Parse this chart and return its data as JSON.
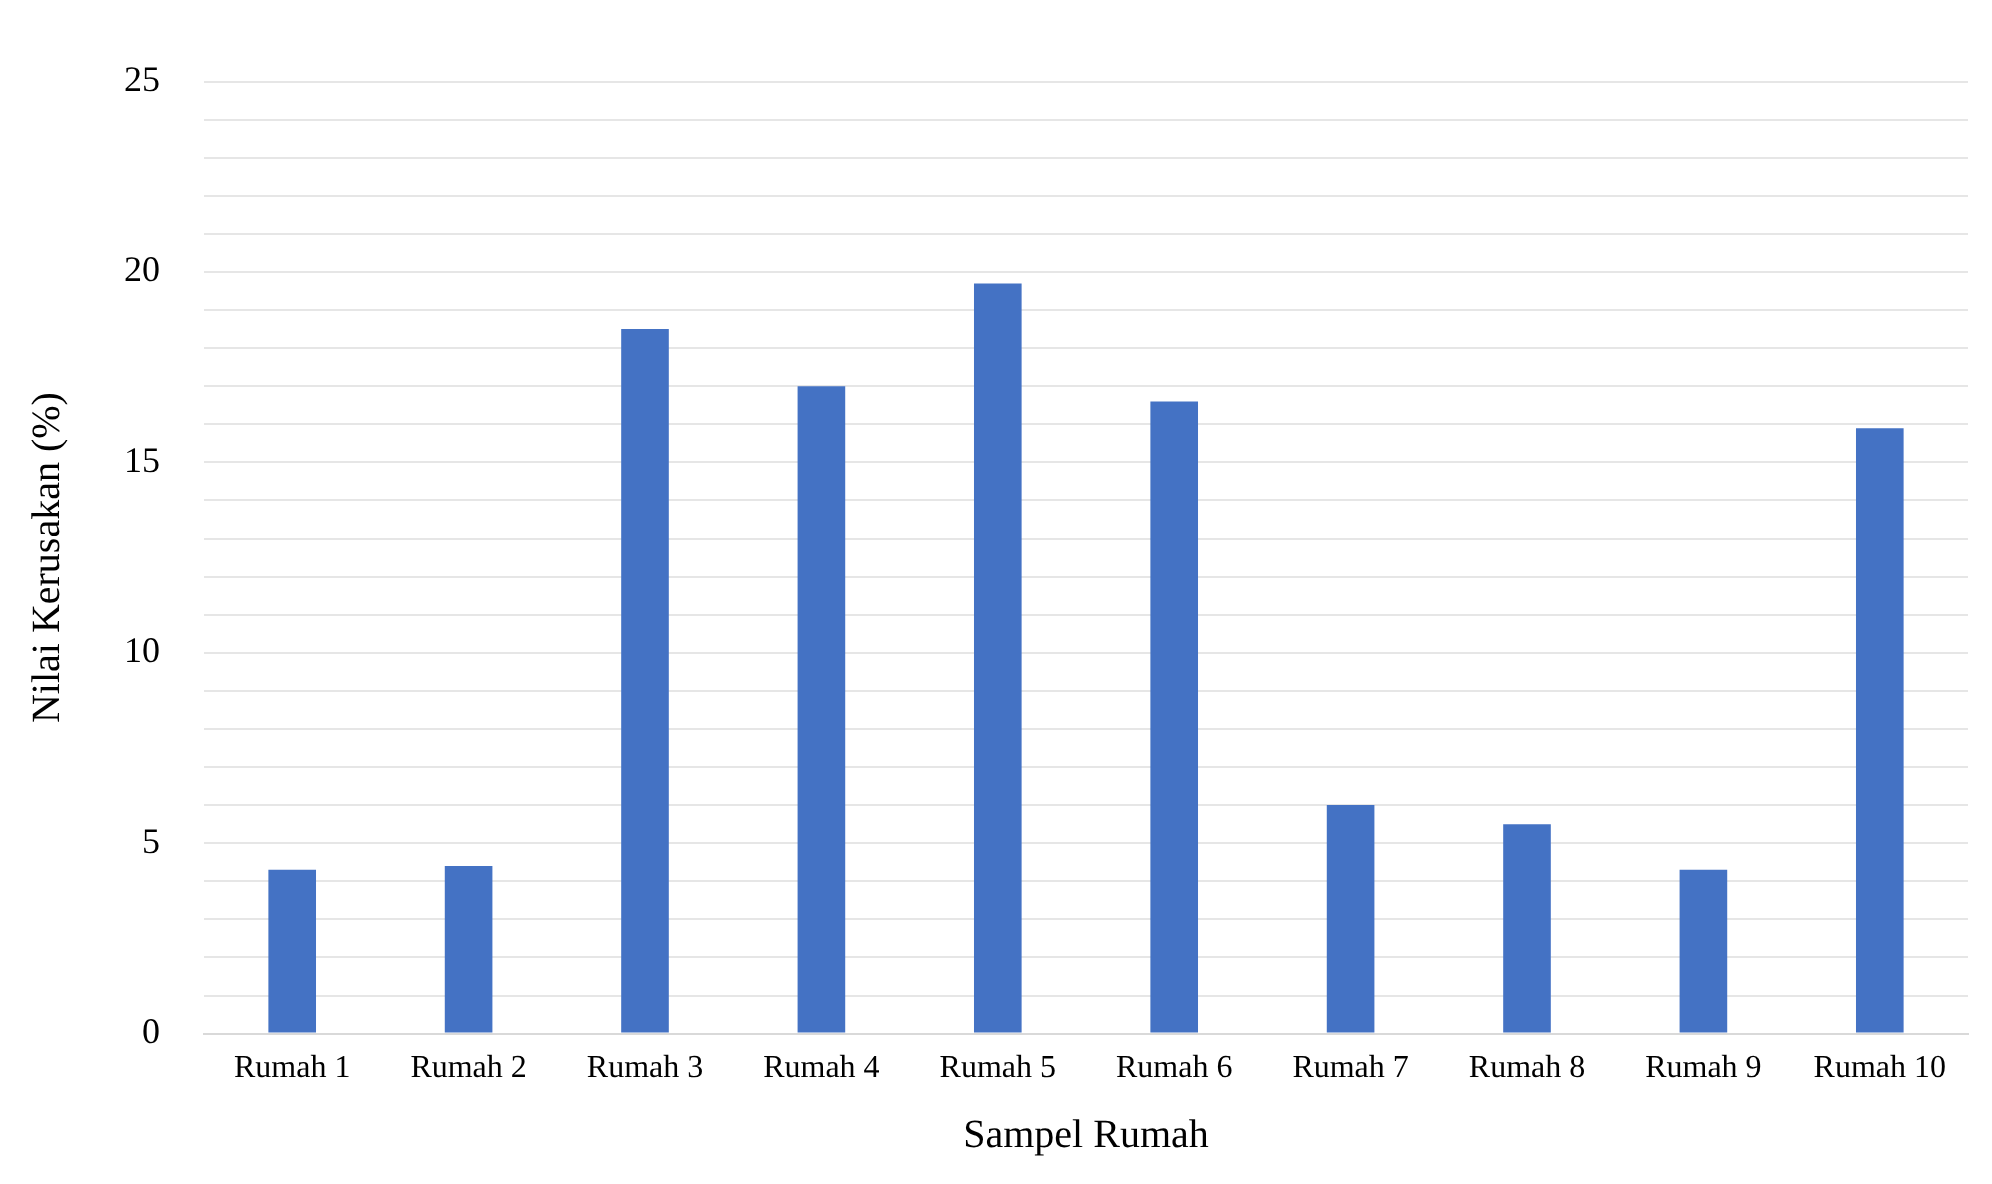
{
  "chart_data": {
    "type": "bar",
    "xlabel": "Sampel Rumah",
    "ylabel": "Nilai Kerusakan (%)",
    "categories": [
      "Rumah 1",
      "Rumah 2",
      "Rumah 3",
      "Rumah 4",
      "Rumah 5",
      "Rumah 6",
      "Rumah 7",
      "Rumah 8",
      "Rumah 9",
      "Rumah 10"
    ],
    "values": [
      4.3,
      4.4,
      18.5,
      17.0,
      19.7,
      16.6,
      6.0,
      5.5,
      4.3,
      15.9
    ],
    "color": "#4472c4",
    "ylim": [
      0,
      25
    ],
    "yticks": [
      0,
      {
        "value": 1,
        "label": null
      },
      {
        "value": 2,
        "label": null
      },
      {
        "value": 3,
        "label": null
      },
      {
        "value": 4,
        "label": null
      },
      5,
      {
        "value": 6,
        "label": null
      },
      {
        "value": 7,
        "label": null
      },
      {
        "value": 8,
        "label": null
      },
      {
        "value": 9,
        "label": null
      },
      10,
      {
        "value": 11,
        "label": null
      },
      {
        "value": 12,
        "label": null
      },
      {
        "value": 13,
        "label": null
      },
      {
        "value": 14,
        "label": null
      },
      15,
      {
        "value": 16,
        "label": null
      },
      {
        "value": 17,
        "label": null
      },
      {
        "value": 18,
        "label": null
      },
      {
        "value": 19,
        "label": null
      },
      20,
      {
        "value": 21,
        "label": null
      },
      {
        "value": 22,
        "label": null
      },
      {
        "value": 23,
        "label": null
      },
      {
        "value": 24,
        "label": null
      },
      25
    ],
    "grid": "y",
    "legend": false
  }
}
